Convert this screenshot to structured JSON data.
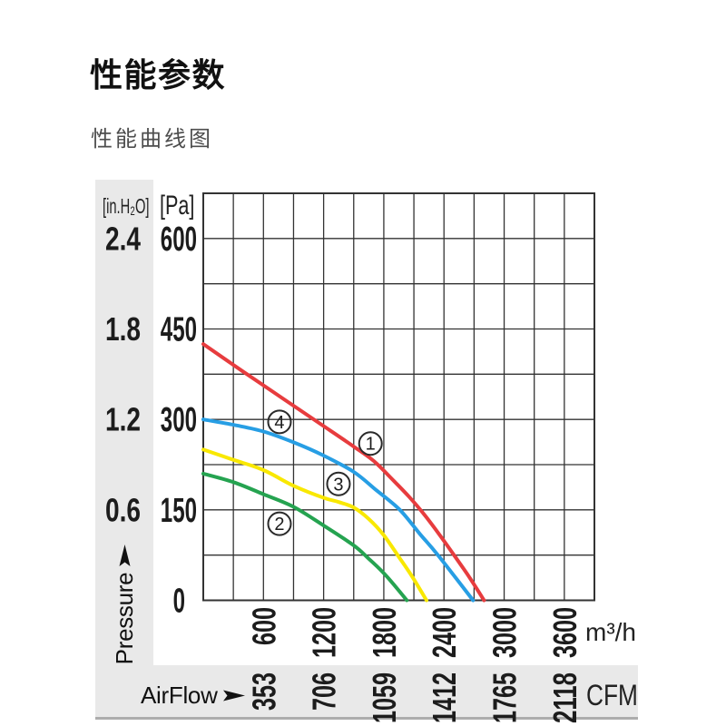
{
  "page": {
    "title": "性能参数",
    "subtitle": "性能曲线图"
  },
  "chart_data": {
    "type": "line",
    "x_axis": {
      "label": "AirFlow",
      "unit_primary": "m³/h",
      "unit_secondary": "CFM",
      "range_m3h": [
        0,
        3900
      ],
      "grid_step_m3h": 300,
      "ticks_m3h": [
        600,
        1200,
        1800,
        2400,
        3000,
        3600
      ],
      "ticks_cfm": [
        353,
        706,
        1059,
        1412,
        1765,
        2118
      ]
    },
    "y_axis": {
      "label": "Pressure",
      "unit_primary": "[Pa]",
      "unit_secondary": "[in.H₂O]",
      "range_pa": [
        0,
        675
      ],
      "grid_step_pa": 75,
      "ticks_pa": [
        600,
        450,
        300,
        150,
        0
      ],
      "ticks_inh2o": [
        2.4,
        1.8,
        1.2,
        0.6
      ]
    },
    "series": [
      {
        "name": "1",
        "color": "#e73c3e",
        "points_m3h_pa": [
          [
            0,
            425
          ],
          [
            400,
            379
          ],
          [
            800,
            334
          ],
          [
            1200,
            289
          ],
          [
            1500,
            255
          ],
          [
            1700,
            231
          ],
          [
            1900,
            198
          ],
          [
            2050,
            172
          ],
          [
            2200,
            143
          ],
          [
            2350,
            110
          ],
          [
            2500,
            75
          ],
          [
            2650,
            39
          ],
          [
            2800,
            0
          ]
        ]
      },
      {
        "name": "2",
        "color": "#25a350",
        "points_m3h_pa": [
          [
            0,
            210
          ],
          [
            300,
            196
          ],
          [
            600,
            176
          ],
          [
            900,
            155
          ],
          [
            1200,
            124
          ],
          [
            1500,
            91
          ],
          [
            1650,
            69
          ],
          [
            1800,
            45
          ],
          [
            1900,
            26
          ],
          [
            2030,
            0
          ]
        ]
      },
      {
        "name": "3",
        "color": "#f9e800",
        "points_m3h_pa": [
          [
            0,
            250
          ],
          [
            300,
            233
          ],
          [
            600,
            216
          ],
          [
            900,
            190
          ],
          [
            1200,
            170
          ],
          [
            1350,
            163
          ],
          [
            1500,
            154
          ],
          [
            1650,
            135
          ],
          [
            1800,
            108
          ],
          [
            1950,
            72
          ],
          [
            2080,
            40
          ],
          [
            2226,
            0
          ]
        ]
      },
      {
        "name": "4",
        "color": "#279ee4",
        "points_m3h_pa": [
          [
            0,
            300
          ],
          [
            300,
            291
          ],
          [
            600,
            280
          ],
          [
            900,
            262
          ],
          [
            1200,
            240
          ],
          [
            1500,
            213
          ],
          [
            1730,
            182
          ],
          [
            1960,
            150
          ],
          [
            2160,
            110
          ],
          [
            2340,
            75
          ],
          [
            2690,
            0
          ]
        ]
      }
    ],
    "curve_markers": [
      {
        "label": "1",
        "m3h": 1667,
        "pa": 260
      },
      {
        "label": "2",
        "m3h": 760,
        "pa": 127
      },
      {
        "label": "3",
        "m3h": 1348,
        "pa": 193
      },
      {
        "label": "4",
        "m3h": 760,
        "pa": 296
      }
    ]
  }
}
